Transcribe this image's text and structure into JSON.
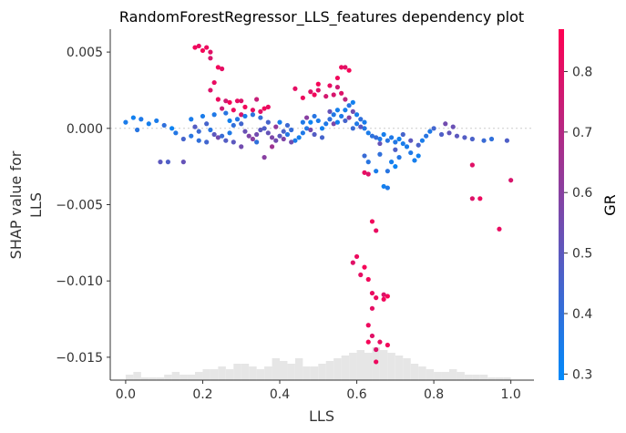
{
  "chart_data": {
    "type": "scatter",
    "title": "RandomForestRegressor_LLS_features dependency plot",
    "xlabel": "LLS",
    "ylabel_lines": [
      "SHAP value for",
      "LLS"
    ],
    "xlim": [
      -0.04,
      1.06
    ],
    "ylim": [
      -0.0165,
      0.0065
    ],
    "x_ticks": [
      0.0,
      0.2,
      0.4,
      0.6,
      0.8,
      1.0
    ],
    "x_tick_labels": [
      "0.0",
      "0.2",
      "0.4",
      "0.6",
      "0.8",
      "1.0"
    ],
    "y_ticks": [
      0.005,
      0.0,
      -0.005,
      -0.01,
      -0.015
    ],
    "y_tick_labels": [
      "0.005",
      "0.000",
      "−0.005",
      "−0.010",
      "−0.015"
    ],
    "zero_line": true,
    "colorbar": {
      "label": "GR",
      "range": [
        0.29,
        0.87
      ],
      "ticks": [
        0.3,
        0.4,
        0.5,
        0.6,
        0.7,
        0.8
      ],
      "tick_labels": [
        "0.3",
        "0.4",
        "0.5",
        "0.6",
        "0.7",
        "0.8"
      ],
      "colors": [
        "#008afb",
        "#ff0052"
      ]
    },
    "histogram": {
      "bin_start": 0.0,
      "bin_width": 0.02,
      "counts": [
        2,
        3,
        1,
        1,
        1,
        2,
        3,
        2,
        2,
        3,
        4,
        4,
        5,
        4,
        6,
        6,
        5,
        4,
        5,
        8,
        7,
        6,
        8,
        5,
        5,
        6,
        7,
        8,
        9,
        10,
        11,
        10,
        12,
        11,
        10,
        9,
        8,
        6,
        5,
        4,
        3,
        3,
        4,
        3,
        2,
        2,
        2,
        1,
        1,
        1
      ]
    },
    "points": [
      {
        "x": 0.0,
        "y": 0.0004,
        "c": 0.35
      },
      {
        "x": 0.02,
        "y": 0.0007,
        "c": 0.33
      },
      {
        "x": 0.04,
        "y": 0.0006,
        "c": 0.36
      },
      {
        "x": 0.06,
        "y": 0.0003,
        "c": 0.34
      },
      {
        "x": 0.03,
        "y": -0.0001,
        "c": 0.38
      },
      {
        "x": 0.08,
        "y": 0.0005,
        "c": 0.35
      },
      {
        "x": 0.1,
        "y": 0.0002,
        "c": 0.4
      },
      {
        "x": 0.12,
        "y": 0.0,
        "c": 0.32
      },
      {
        "x": 0.13,
        "y": -0.0003,
        "c": 0.37
      },
      {
        "x": 0.15,
        "y": -0.0007,
        "c": 0.45
      },
      {
        "x": 0.17,
        "y": -0.0005,
        "c": 0.38
      },
      {
        "x": 0.19,
        "y": -0.0002,
        "c": 0.42
      },
      {
        "x": 0.09,
        "y": -0.0022,
        "c": 0.5
      },
      {
        "x": 0.11,
        "y": -0.0022,
        "c": 0.47
      },
      {
        "x": 0.15,
        "y": -0.0022,
        "c": 0.52
      },
      {
        "x": 0.18,
        "y": 0.0053,
        "c": 0.84
      },
      {
        "x": 0.19,
        "y": 0.0054,
        "c": 0.82
      },
      {
        "x": 0.2,
        "y": 0.0051,
        "c": 0.85
      },
      {
        "x": 0.21,
        "y": 0.0053,
        "c": 0.83
      },
      {
        "x": 0.22,
        "y": 0.005,
        "c": 0.8
      },
      {
        "x": 0.22,
        "y": 0.0046,
        "c": 0.78
      },
      {
        "x": 0.24,
        "y": 0.004,
        "c": 0.84
      },
      {
        "x": 0.25,
        "y": 0.0039,
        "c": 0.81
      },
      {
        "x": 0.23,
        "y": 0.003,
        "c": 0.82
      },
      {
        "x": 0.22,
        "y": 0.0025,
        "c": 0.79
      },
      {
        "x": 0.24,
        "y": 0.0019,
        "c": 0.83
      },
      {
        "x": 0.26,
        "y": 0.0018,
        "c": 0.76
      },
      {
        "x": 0.27,
        "y": 0.0017,
        "c": 0.85
      },
      {
        "x": 0.29,
        "y": 0.0018,
        "c": 0.82
      },
      {
        "x": 0.3,
        "y": 0.0018,
        "c": 0.79
      },
      {
        "x": 0.31,
        "y": 0.0014,
        "c": 0.84
      },
      {
        "x": 0.33,
        "y": 0.0012,
        "c": 0.81
      },
      {
        "x": 0.34,
        "y": 0.0019,
        "c": 0.74
      },
      {
        "x": 0.28,
        "y": 0.0012,
        "c": 0.83
      },
      {
        "x": 0.3,
        "y": 0.0009,
        "c": 0.78
      },
      {
        "x": 0.35,
        "y": 0.0011,
        "c": 0.8
      },
      {
        "x": 0.25,
        "y": 0.0013,
        "c": 0.75
      },
      {
        "x": 0.36,
        "y": 0.0013,
        "c": 0.84
      },
      {
        "x": 0.37,
        "y": 0.0014,
        "c": 0.82
      },
      {
        "x": 0.44,
        "y": 0.0026,
        "c": 0.81
      },
      {
        "x": 0.46,
        "y": 0.002,
        "c": 0.83
      },
      {
        "x": 0.48,
        "y": 0.0024,
        "c": 0.8
      },
      {
        "x": 0.49,
        "y": 0.0022,
        "c": 0.84
      },
      {
        "x": 0.5,
        "y": 0.0025,
        "c": 0.79
      },
      {
        "x": 0.5,
        "y": 0.0029,
        "c": 0.85
      },
      {
        "x": 0.52,
        "y": 0.0021,
        "c": 0.77
      },
      {
        "x": 0.53,
        "y": 0.0028,
        "c": 0.82
      },
      {
        "x": 0.54,
        "y": 0.0022,
        "c": 0.78
      },
      {
        "x": 0.55,
        "y": 0.0033,
        "c": 0.84
      },
      {
        "x": 0.56,
        "y": 0.004,
        "c": 0.83
      },
      {
        "x": 0.57,
        "y": 0.004,
        "c": 0.8
      },
      {
        "x": 0.58,
        "y": 0.0038,
        "c": 0.85
      },
      {
        "x": 0.55,
        "y": 0.0027,
        "c": 0.76
      },
      {
        "x": 0.57,
        "y": 0.0019,
        "c": 0.72
      },
      {
        "x": 0.56,
        "y": 0.0023,
        "c": 0.79
      },
      {
        "x": 0.62,
        "y": -0.0029,
        "c": 0.82
      },
      {
        "x": 0.63,
        "y": -0.003,
        "c": 0.79
      },
      {
        "x": 0.64,
        "y": -0.0061,
        "c": 0.84
      },
      {
        "x": 0.65,
        "y": -0.0067,
        "c": 0.82
      },
      {
        "x": 0.6,
        "y": -0.0084,
        "c": 0.83
      },
      {
        "x": 0.59,
        "y": -0.0088,
        "c": 0.8
      },
      {
        "x": 0.62,
        "y": -0.0091,
        "c": 0.85
      },
      {
        "x": 0.61,
        "y": -0.0096,
        "c": 0.81
      },
      {
        "x": 0.63,
        "y": -0.0099,
        "c": 0.84
      },
      {
        "x": 0.64,
        "y": -0.0108,
        "c": 0.82
      },
      {
        "x": 0.65,
        "y": -0.0111,
        "c": 0.83
      },
      {
        "x": 0.67,
        "y": -0.0109,
        "c": 0.79
      },
      {
        "x": 0.68,
        "y": -0.011,
        "c": 0.85
      },
      {
        "x": 0.67,
        "y": -0.0112,
        "c": 0.84
      },
      {
        "x": 0.64,
        "y": -0.0118,
        "c": 0.81
      },
      {
        "x": 0.63,
        "y": -0.0129,
        "c": 0.83
      },
      {
        "x": 0.64,
        "y": -0.0136,
        "c": 0.8
      },
      {
        "x": 0.63,
        "y": -0.014,
        "c": 0.85
      },
      {
        "x": 0.66,
        "y": -0.014,
        "c": 0.82
      },
      {
        "x": 0.68,
        "y": -0.0142,
        "c": 0.84
      },
      {
        "x": 0.65,
        "y": -0.0153,
        "c": 0.83
      },
      {
        "x": 0.65,
        "y": -0.0145,
        "c": 0.79
      },
      {
        "x": 0.9,
        "y": -0.0024,
        "c": 0.8
      },
      {
        "x": 0.9,
        "y": -0.0046,
        "c": 0.79
      },
      {
        "x": 0.92,
        "y": -0.0046,
        "c": 0.83
      },
      {
        "x": 0.97,
        "y": -0.0066,
        "c": 0.82
      },
      {
        "x": 1.0,
        "y": -0.0034,
        "c": 0.78
      },
      {
        "x": 0.62,
        "y": -0.0018,
        "c": 0.42
      },
      {
        "x": 0.63,
        "y": -0.0022,
        "c": 0.38
      },
      {
        "x": 0.65,
        "y": -0.0028,
        "c": 0.35
      },
      {
        "x": 0.67,
        "y": -0.0038,
        "c": 0.33
      },
      {
        "x": 0.68,
        "y": -0.0039,
        "c": 0.36
      },
      {
        "x": 0.68,
        "y": -0.0028,
        "c": 0.38
      },
      {
        "x": 0.69,
        "y": -0.0022,
        "c": 0.34
      },
      {
        "x": 0.7,
        "y": -0.0025,
        "c": 0.32
      },
      {
        "x": 0.66,
        "y": -0.0017,
        "c": 0.4
      },
      {
        "x": 0.71,
        "y": -0.0019,
        "c": 0.37
      },
      {
        "x": 0.73,
        "y": -0.0012,
        "c": 0.35
      },
      {
        "x": 0.74,
        "y": -0.0016,
        "c": 0.36
      },
      {
        "x": 0.75,
        "y": -0.0021,
        "c": 0.34
      },
      {
        "x": 0.76,
        "y": -0.0018,
        "c": 0.33
      },
      {
        "x": 0.77,
        "y": -0.0008,
        "c": 0.35
      },
      {
        "x": 0.78,
        "y": -0.0005,
        "c": 0.38
      },
      {
        "x": 0.79,
        "y": -0.0002,
        "c": 0.36
      },
      {
        "x": 0.8,
        "y": 0.0,
        "c": 0.44
      },
      {
        "x": 0.82,
        "y": -0.0004,
        "c": 0.47
      },
      {
        "x": 0.84,
        "y": -0.0003,
        "c": 0.51
      },
      {
        "x": 0.86,
        "y": -0.0005,
        "c": 0.5
      },
      {
        "x": 0.88,
        "y": -0.0006,
        "c": 0.48
      },
      {
        "x": 0.9,
        "y": -0.0007,
        "c": 0.46
      },
      {
        "x": 0.93,
        "y": -0.0008,
        "c": 0.42
      },
      {
        "x": 0.95,
        "y": -0.0007,
        "c": 0.4
      },
      {
        "x": 0.99,
        "y": -0.0008,
        "c": 0.47
      },
      {
        "x": 0.83,
        "y": 0.0003,
        "c": 0.55
      },
      {
        "x": 0.85,
        "y": 0.0001,
        "c": 0.53
      },
      {
        "x": 0.74,
        "y": -0.0008,
        "c": 0.5
      },
      {
        "x": 0.72,
        "y": -0.0004,
        "c": 0.45
      },
      {
        "x": 0.56,
        "y": 0.0008,
        "c": 0.36
      },
      {
        "x": 0.57,
        "y": 0.0012,
        "c": 0.34
      },
      {
        "x": 0.58,
        "y": 0.0015,
        "c": 0.38
      },
      {
        "x": 0.59,
        "y": 0.0017,
        "c": 0.33
      },
      {
        "x": 0.6,
        "y": 0.0009,
        "c": 0.35
      },
      {
        "x": 0.61,
        "y": 0.0006,
        "c": 0.4
      },
      {
        "x": 0.6,
        "y": 0.0003,
        "c": 0.36
      },
      {
        "x": 0.59,
        "y": 0.0,
        "c": 0.42
      },
      {
        "x": 0.57,
        "y": 0.0005,
        "c": 0.45
      },
      {
        "x": 0.62,
        "y": 0.0,
        "c": 0.37
      },
      {
        "x": 0.63,
        "y": -0.0003,
        "c": 0.35
      },
      {
        "x": 0.64,
        "y": -0.0005,
        "c": 0.39
      },
      {
        "x": 0.65,
        "y": -0.0006,
        "c": 0.41
      },
      {
        "x": 0.66,
        "y": -0.0007,
        "c": 0.36
      },
      {
        "x": 0.67,
        "y": -0.0004,
        "c": 0.34
      },
      {
        "x": 0.68,
        "y": -0.0008,
        "c": 0.38
      },
      {
        "x": 0.69,
        "y": -0.0006,
        "c": 0.36
      },
      {
        "x": 0.7,
        "y": -0.0009,
        "c": 0.37
      },
      {
        "x": 0.71,
        "y": -0.0007,
        "c": 0.33
      },
      {
        "x": 0.72,
        "y": -0.001,
        "c": 0.35
      },
      {
        "x": 0.54,
        "y": 0.0009,
        "c": 0.37
      },
      {
        "x": 0.55,
        "y": 0.0012,
        "c": 0.34
      },
      {
        "x": 0.53,
        "y": 0.0006,
        "c": 0.4
      },
      {
        "x": 0.52,
        "y": 0.0003,
        "c": 0.36
      },
      {
        "x": 0.51,
        "y": 0.0,
        "c": 0.33
      },
      {
        "x": 0.5,
        "y": 0.0005,
        "c": 0.35
      },
      {
        "x": 0.49,
        "y": 0.0008,
        "c": 0.38
      },
      {
        "x": 0.48,
        "y": 0.0004,
        "c": 0.32
      },
      {
        "x": 0.47,
        "y": 0.0,
        "c": 0.37
      },
      {
        "x": 0.46,
        "y": -0.0003,
        "c": 0.36
      },
      {
        "x": 0.45,
        "y": -0.0006,
        "c": 0.34
      },
      {
        "x": 0.44,
        "y": -0.0008,
        "c": 0.35
      },
      {
        "x": 0.2,
        "y": 0.0008,
        "c": 0.35
      },
      {
        "x": 0.21,
        "y": 0.0003,
        "c": 0.45
      },
      {
        "x": 0.22,
        "y": -0.0001,
        "c": 0.38
      },
      {
        "x": 0.23,
        "y": -0.0004,
        "c": 0.5
      },
      {
        "x": 0.24,
        "y": -0.0006,
        "c": 0.55
      },
      {
        "x": 0.25,
        "y": -0.0005,
        "c": 0.42
      },
      {
        "x": 0.26,
        "y": -0.0008,
        "c": 0.48
      },
      {
        "x": 0.27,
        "y": -0.0003,
        "c": 0.36
      },
      {
        "x": 0.28,
        "y": 0.0002,
        "c": 0.4
      },
      {
        "x": 0.29,
        "y": 0.0006,
        "c": 0.37
      },
      {
        "x": 0.3,
        "y": 0.0003,
        "c": 0.44
      },
      {
        "x": 0.31,
        "y": -0.0002,
        "c": 0.53
      },
      {
        "x": 0.32,
        "y": -0.0005,
        "c": 0.58
      },
      {
        "x": 0.33,
        "y": -0.0007,
        "c": 0.6
      },
      {
        "x": 0.34,
        "y": -0.0004,
        "c": 0.55
      },
      {
        "x": 0.35,
        "y": -0.0001,
        "c": 0.5
      },
      {
        "x": 0.36,
        "y": 0.0,
        "c": 0.47
      },
      {
        "x": 0.37,
        "y": -0.0003,
        "c": 0.52
      },
      {
        "x": 0.38,
        "y": -0.0006,
        "c": 0.57
      },
      {
        "x": 0.39,
        "y": -0.0008,
        "c": 0.55
      },
      {
        "x": 0.4,
        "y": -0.0005,
        "c": 0.5
      },
      {
        "x": 0.41,
        "y": -0.0002,
        "c": 0.46
      },
      {
        "x": 0.42,
        "y": 0.0002,
        "c": 0.43
      },
      {
        "x": 0.43,
        "y": -0.0001,
        "c": 0.41
      },
      {
        "x": 0.19,
        "y": -0.0008,
        "c": 0.4
      },
      {
        "x": 0.21,
        "y": -0.0009,
        "c": 0.44
      },
      {
        "x": 0.23,
        "y": 0.0009,
        "c": 0.36
      },
      {
        "x": 0.26,
        "y": 0.001,
        "c": 0.38
      },
      {
        "x": 0.28,
        "y": -0.0009,
        "c": 0.5
      },
      {
        "x": 0.33,
        "y": 0.0009,
        "c": 0.39
      },
      {
        "x": 0.35,
        "y": 0.0007,
        "c": 0.41
      },
      {
        "x": 0.37,
        "y": 0.0004,
        "c": 0.45
      },
      {
        "x": 0.39,
        "y": 0.0001,
        "c": 0.62
      },
      {
        "x": 0.41,
        "y": -0.0007,
        "c": 0.58
      },
      {
        "x": 0.43,
        "y": -0.0009,
        "c": 0.54
      },
      {
        "x": 0.36,
        "y": -0.0019,
        "c": 0.6
      },
      {
        "x": 0.3,
        "y": -0.0012,
        "c": 0.55
      },
      {
        "x": 0.17,
        "y": 0.0006,
        "c": 0.35
      },
      {
        "x": 0.18,
        "y": 0.0001,
        "c": 0.48
      },
      {
        "x": 0.38,
        "y": -0.0012,
        "c": 0.65
      },
      {
        "x": 0.47,
        "y": 0.0007,
        "c": 0.6
      },
      {
        "x": 0.48,
        "y": -0.0001,
        "c": 0.55
      },
      {
        "x": 0.49,
        "y": -0.0004,
        "c": 0.48
      },
      {
        "x": 0.51,
        "y": -0.0006,
        "c": 0.45
      },
      {
        "x": 0.53,
        "y": 0.0011,
        "c": 0.52
      },
      {
        "x": 0.54,
        "y": 0.0003,
        "c": 0.57
      },
      {
        "x": 0.58,
        "y": 0.0007,
        "c": 0.6
      },
      {
        "x": 0.59,
        "y": 0.0011,
        "c": 0.55
      },
      {
        "x": 0.61,
        "y": 0.0001,
        "c": 0.5
      },
      {
        "x": 0.42,
        "y": -0.0004,
        "c": 0.37
      },
      {
        "x": 0.4,
        "y": 0.0004,
        "c": 0.34
      },
      {
        "x": 0.27,
        "y": 0.0005,
        "c": 0.33
      },
      {
        "x": 0.31,
        "y": 0.0008,
        "c": 0.35
      },
      {
        "x": 0.34,
        "y": -0.0009,
        "c": 0.4
      },
      {
        "x": 0.46,
        "y": 0.0004,
        "c": 0.36
      },
      {
        "x": 0.55,
        "y": 0.0004,
        "c": 0.33
      },
      {
        "x": 0.62,
        "y": 0.0004,
        "c": 0.35
      },
      {
        "x": 0.66,
        "y": -0.001,
        "c": 0.52
      },
      {
        "x": 0.7,
        "y": -0.0014,
        "c": 0.47
      },
      {
        "x": 0.76,
        "y": -0.0011,
        "c": 0.46
      }
    ]
  }
}
